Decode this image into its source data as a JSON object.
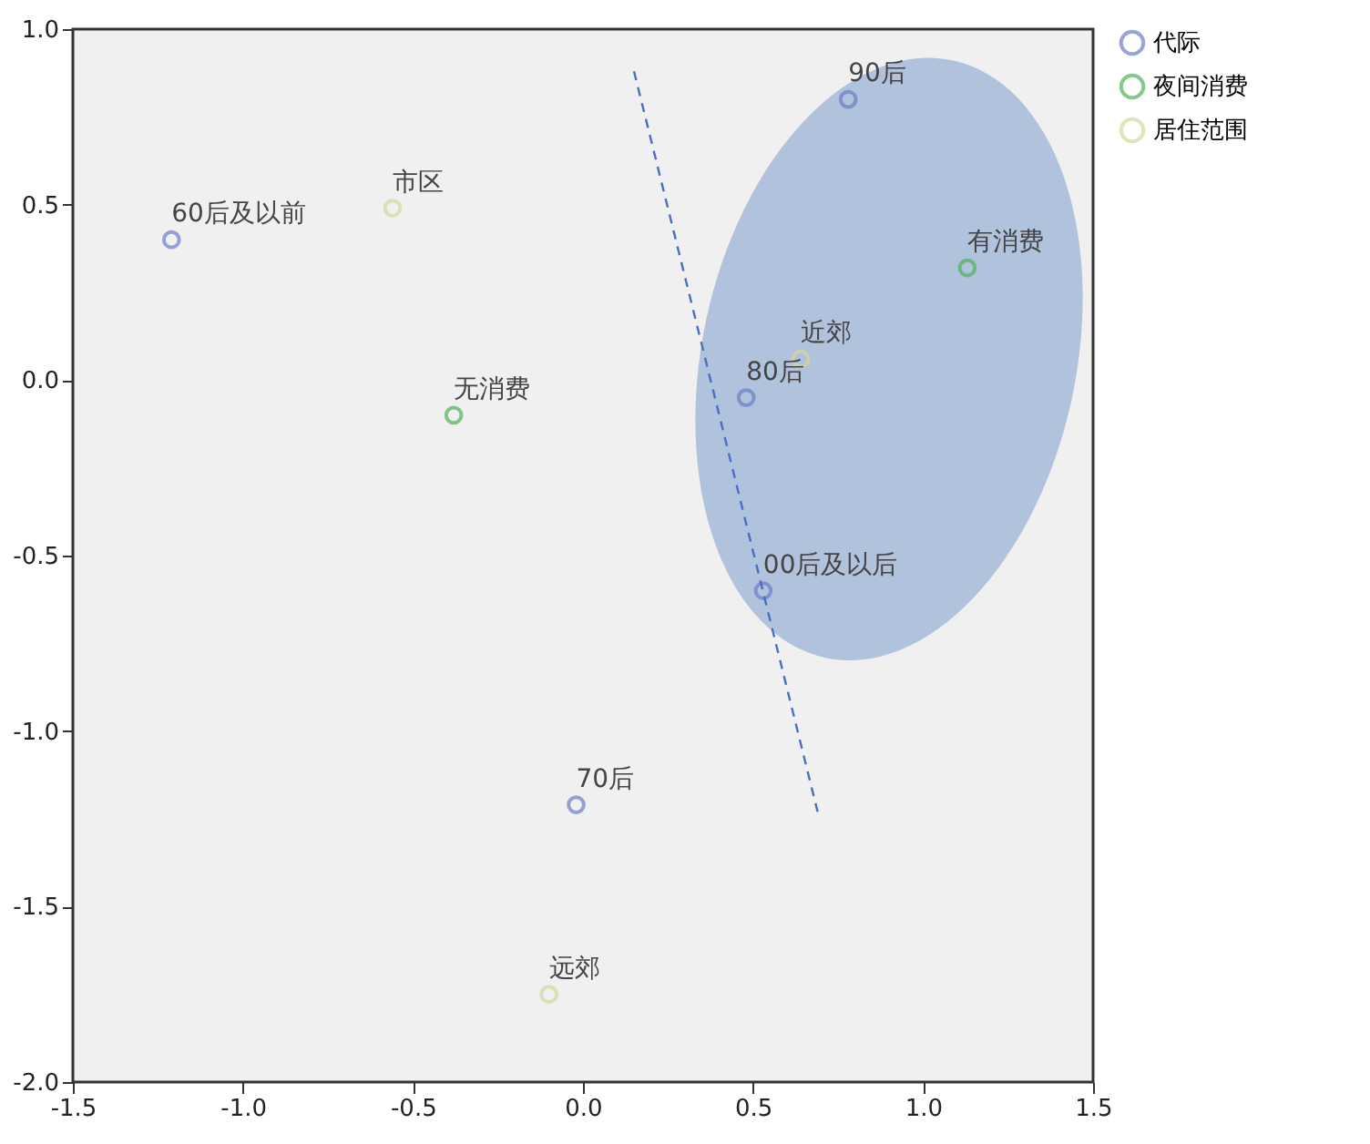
{
  "chart_data": {
    "type": "scatter",
    "series": [
      {
        "name": "代际",
        "color": "#6b7fc8",
        "x": [
          -1.21,
          -0.02,
          0.48,
          0.78,
          0.53
        ],
        "values": [
          0.4,
          -1.21,
          -0.05,
          0.8,
          -0.6
        ]
      },
      {
        "name": "夜间消费",
        "color": "#4fb35c",
        "x": [
          -0.38,
          1.13
        ],
        "values": [
          -0.1,
          0.32
        ]
      },
      {
        "name": "居住范围",
        "color": "#d6d89c",
        "x": [
          -0.56,
          0.64,
          -0.1
        ],
        "values": [
          0.49,
          0.06,
          -1.75
        ]
      },
      {
        "type": "line",
        "color": "#4a6fc0",
        "line_style": "dashed",
        "marker": "none",
        "x": [
          0.15,
          0.69
        ],
        "values": [
          0.88,
          -1.23
        ]
      }
    ],
    "annotations": [
      {
        "text": "60后及以前",
        "x": -1.21,
        "y": 0.4
      },
      {
        "text": "70后",
        "x": -0.02,
        "y": -1.21
      },
      {
        "text": "80后",
        "x": 0.48,
        "y": -0.05
      },
      {
        "text": "90后",
        "x": 0.78,
        "y": 0.8
      },
      {
        "text": "00后及以后",
        "x": 0.53,
        "y": -0.6
      },
      {
        "text": "无消费",
        "x": -0.38,
        "y": -0.1
      },
      {
        "text": "有消费",
        "x": 1.13,
        "y": 0.32
      },
      {
        "text": "市区",
        "x": -0.56,
        "y": 0.49
      },
      {
        "text": "近郊",
        "x": 0.64,
        "y": 0.06
      },
      {
        "text": "远郊",
        "x": -0.1,
        "y": -1.75
      }
    ],
    "marker": "circle",
    "xlim": [
      -1.5,
      1.5
    ],
    "xticks": [
      {
        "value": -1.5,
        "label": "-1.5"
      },
      {
        "value": -1,
        "label": "-1.0"
      },
      {
        "value": -0.5,
        "label": "-0.5"
      },
      {
        "value": 0,
        "label": "0.0"
      },
      {
        "value": 0.5,
        "label": "0.5"
      },
      {
        "value": 1,
        "label": "1.0"
      },
      {
        "value": 1.5,
        "label": "1.5"
      }
    ],
    "ylim": [
      -2,
      1
    ],
    "yticks": [
      {
        "value": -2,
        "label": "-2.0"
      },
      {
        "value": -1.5,
        "label": "-1.5"
      },
      {
        "value": -1,
        "label": "-1.0"
      },
      {
        "value": -0.5,
        "label": "-0.5"
      },
      {
        "value": 0,
        "label": "0.0"
      },
      {
        "value": 0.5,
        "label": "0.5"
      },
      {
        "value": 1,
        "label": "1.0"
      }
    ],
    "grid": false,
    "legend": "top right"
  }
}
